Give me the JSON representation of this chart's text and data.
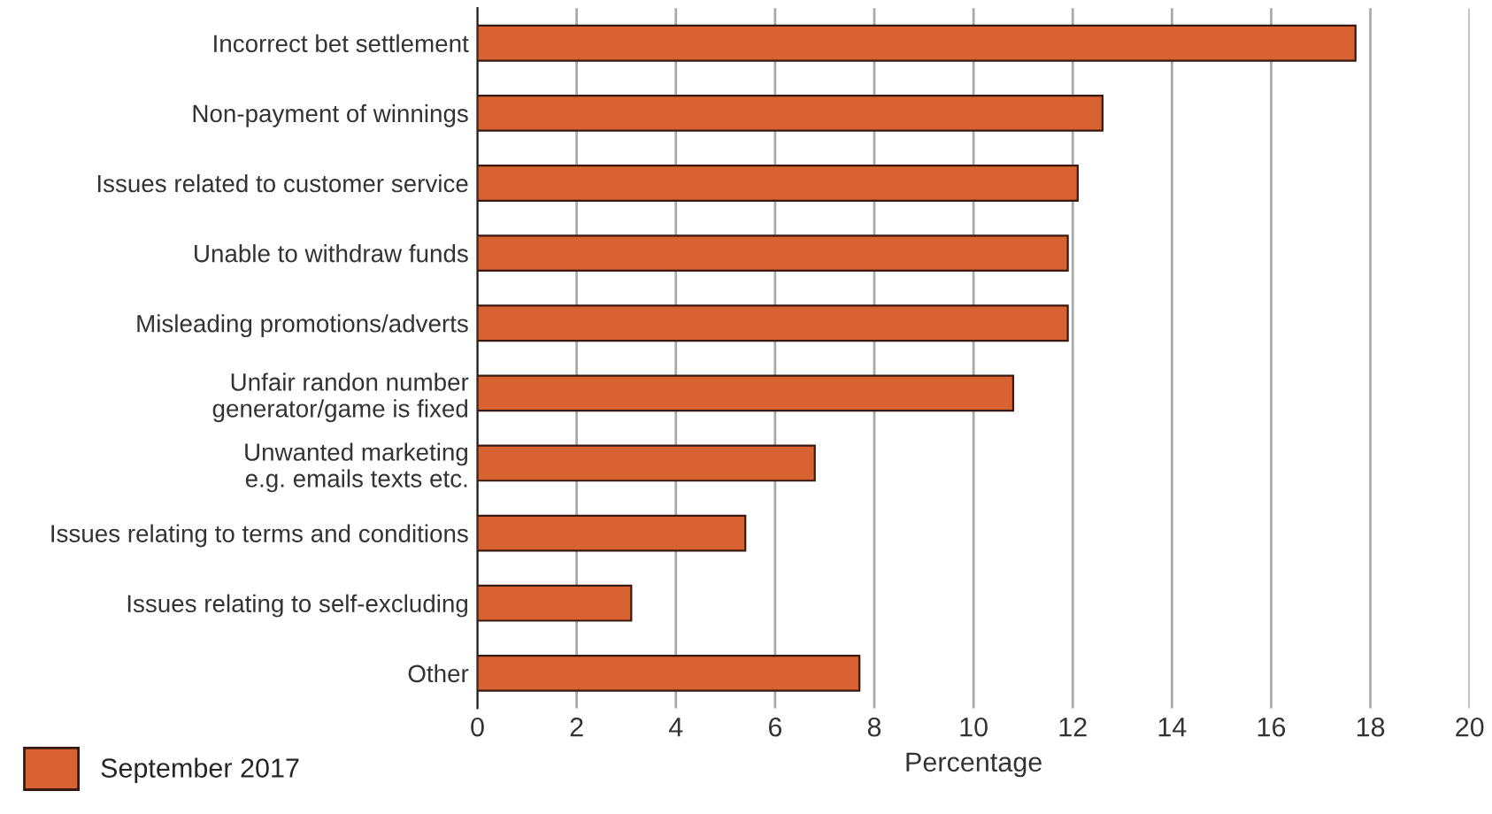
{
  "chart_data": {
    "type": "bar",
    "orientation": "horizontal",
    "categories": [
      "Incorrect bet settlement",
      "Non-payment of winnings",
      "Issues related to customer service",
      "Unable to withdraw funds",
      "Misleading promotions/adverts",
      "Unfair randon number\ngenerator/game is fixed",
      "Unwanted marketing\ne.g. emails texts etc.",
      "Issues relating to terms and conditions",
      "Issues relating to self-excluding",
      "Other"
    ],
    "series": [
      {
        "name": "September 2017",
        "color": "#d96233",
        "values": [
          17.7,
          12.6,
          12.1,
          11.9,
          11.9,
          10.8,
          6.8,
          5.4,
          3.1,
          7.7
        ]
      }
    ],
    "xlabel": "Percentage",
    "xlim": [
      0,
      20
    ],
    "xticks": [
      0,
      2,
      4,
      6,
      8,
      10,
      12,
      14,
      16,
      18,
      20
    ],
    "grid": "x",
    "legend": "bottom left"
  }
}
